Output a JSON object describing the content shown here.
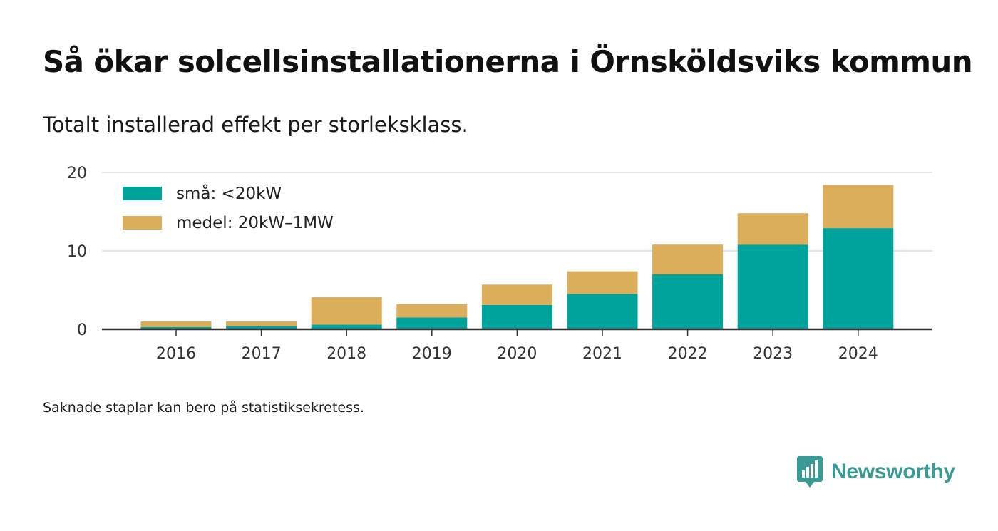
{
  "title": "Så ökar solcellsinstallationerna i Örnsköldsviks kommun",
  "subtitle": "Totalt installerad effekt per storleksklass.",
  "note": "Saknade staplar kan bero på statistiksekretess.",
  "brand": {
    "name": "Newsworthy",
    "icon": "newsworthy-logo-icon",
    "color": "#3a9a94"
  },
  "chart_data": {
    "type": "bar",
    "stacked": true,
    "categories": [
      "2016",
      "2017",
      "2018",
      "2019",
      "2020",
      "2021",
      "2022",
      "2023",
      "2024"
    ],
    "series": [
      {
        "name": "små: <20kW",
        "color": "#00a39b",
        "values": [
          0.3,
          0.4,
          0.6,
          1.5,
          3.1,
          4.5,
          7.0,
          10.8,
          12.9
        ]
      },
      {
        "name": "medel: 20kW–1MW",
        "color": "#dbae5c",
        "values": [
          0.7,
          0.6,
          3.5,
          1.7,
          2.6,
          2.9,
          3.8,
          4.0,
          5.5
        ]
      }
    ],
    "ylim": [
      0,
      20
    ],
    "yticks": [
      0,
      10,
      20
    ],
    "grid": true,
    "legend": "top-left",
    "xlabel": "",
    "ylabel": ""
  }
}
